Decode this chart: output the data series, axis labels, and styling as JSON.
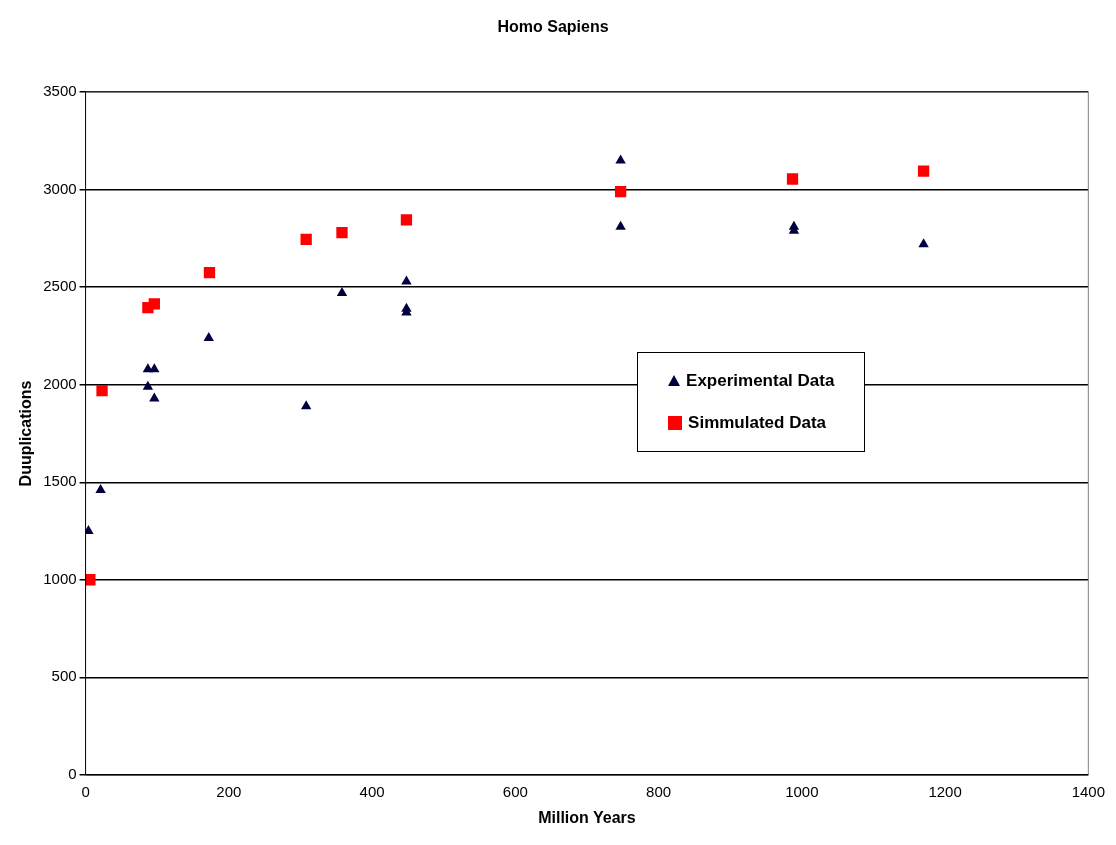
{
  "chart_data": {
    "type": "scatter",
    "title": "Homo Sapiens",
    "xlabel": "Million Years",
    "ylabel": "Duuplications",
    "xlim": [
      0,
      1400
    ],
    "xticks": [
      0,
      200,
      400,
      600,
      800,
      1000,
      1200,
      1400
    ],
    "ylim": [
      0,
      3500
    ],
    "yticks": [
      0,
      500,
      1000,
      1500,
      2000,
      2500,
      3000,
      3500
    ],
    "grid": "y",
    "legend": "right",
    "series": [
      {
        "name": "Experimental Data",
        "color": "#000040",
        "marker": "triangle",
        "x": [
          4,
          21,
          87,
          96,
          87,
          96,
          172,
          308,
          358,
          448,
          448,
          448,
          747,
          747,
          989,
          989,
          1170
        ],
        "values": [
          1250,
          1460,
          2080,
          2080,
          1990,
          1930,
          2240,
          1890,
          2470,
          2530,
          2390,
          2370,
          3150,
          2810,
          2810,
          2790,
          2720
        ]
      },
      {
        "name": "Simmulated Data",
        "color": "#ff0000",
        "marker": "square",
        "x": [
          6,
          23,
          87,
          96,
          173,
          308,
          358,
          448,
          747,
          987,
          1170
        ],
        "values": [
          1000,
          1970,
          2395,
          2415,
          2575,
          2745,
          2780,
          2845,
          2990,
          3055,
          3095
        ]
      }
    ]
  }
}
